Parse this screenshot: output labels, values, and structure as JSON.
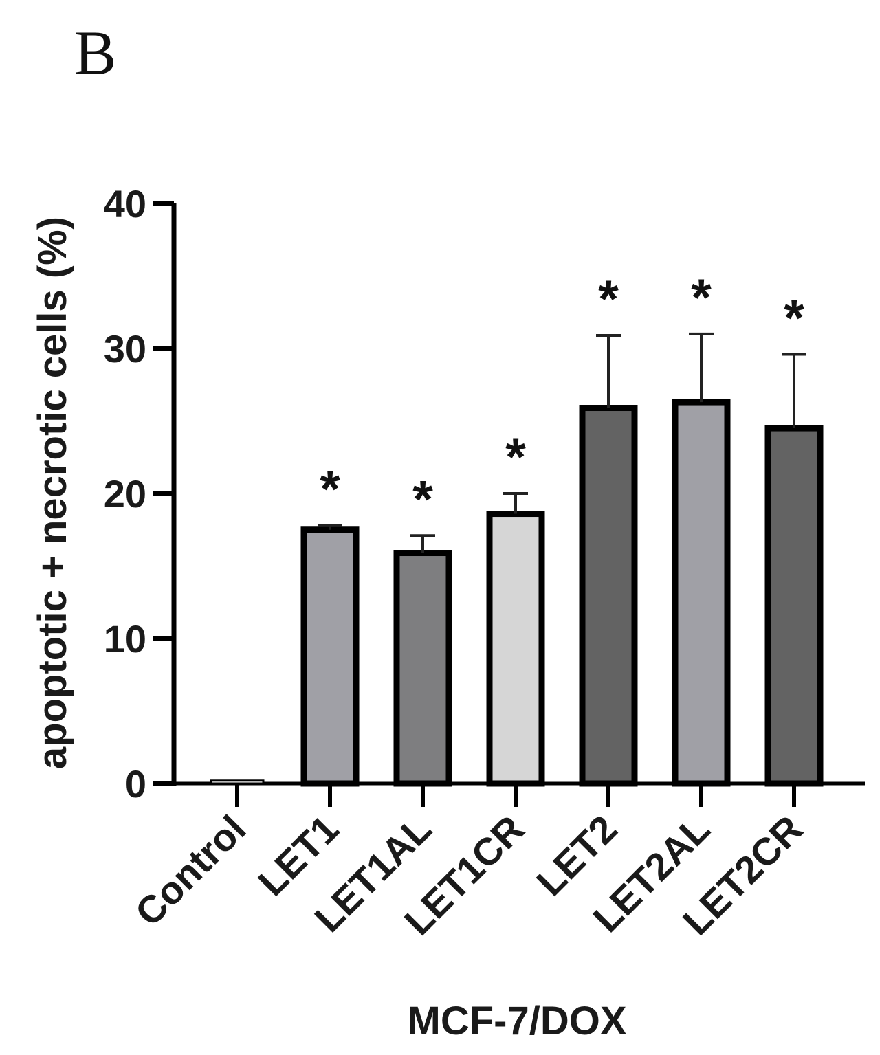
{
  "panel_label": "B",
  "chart_data": {
    "type": "bar",
    "categories": [
      "Control",
      "LET1",
      "LET1AL",
      "LET1CR",
      "LET2",
      "LET2AL",
      "LET2CR"
    ],
    "values": [
      0.2,
      17.5,
      15.9,
      18.6,
      25.9,
      26.3,
      24.5
    ],
    "errors": [
      0,
      0.3,
      1.2,
      1.4,
      5.0,
      4.7,
      5.1
    ],
    "significance": [
      "",
      "*",
      "*",
      "*",
      "*",
      "*",
      "*"
    ],
    "fill_colors": [
      "#ffffff",
      "#a0a0a6",
      "#7e7e80",
      "#d6d6d6",
      "#636363",
      "#a0a0a6",
      "#636363"
    ],
    "outline_color": "#000000",
    "xlabel": "MCF-7/DOX",
    "ylabel": "apoptotic + necrotic cells (%)",
    "ylim": [
      0,
      40
    ],
    "yticks": [
      "0",
      "10",
      "20",
      "30",
      "40"
    ],
    "grid": false,
    "legend": "none"
  }
}
